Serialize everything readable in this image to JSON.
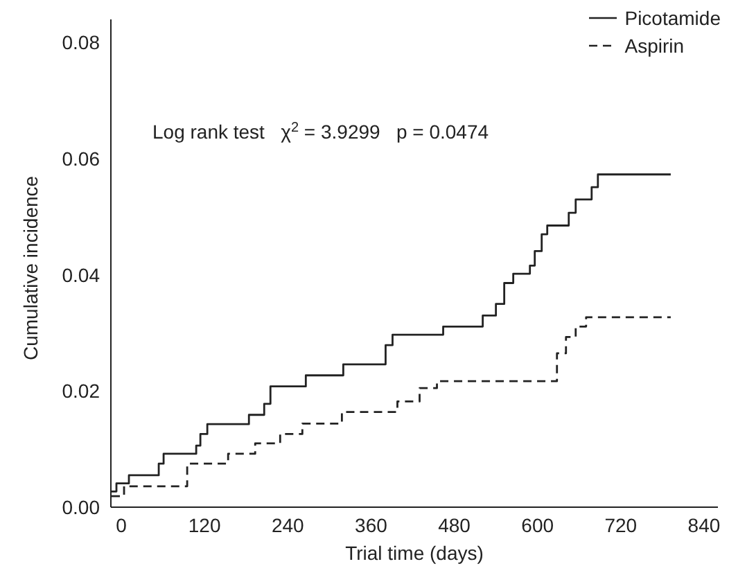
{
  "chart_data": {
    "type": "step",
    "xlabel": "Trial time (days)",
    "ylabel": "Cumulative incidence",
    "xlim": [
      -15,
      860
    ],
    "xticks": [
      0,
      120,
      240,
      360,
      480,
      600,
      720,
      840
    ],
    "ylim": [
      0,
      0.084
    ],
    "yticks": [
      {
        "value": 0,
        "label": "0.00"
      },
      {
        "value": 0.02,
        "label": "0.02"
      },
      {
        "value": 0.04,
        "label": "0.04"
      },
      {
        "value": 0.06,
        "label": "0.06"
      },
      {
        "value": 0.08,
        "label": "0.08"
      }
    ],
    "legend": "top right",
    "marker": "none",
    "annotations": [
      {
        "text": "Log rank test   χ$^{2}$ = 3.9299   p = 0.0474"
      }
    ],
    "series": [
      {
        "name": "Picotamide",
        "color": "#222222",
        "line_style": "solid",
        "x": [
          -14,
          -7,
          11,
          54,
          61,
          108,
          114,
          124,
          184,
          206,
          215,
          266,
          320,
          381,
          391,
          464,
          521,
          540,
          552,
          565,
          589,
          596,
          606,
          614,
          645,
          655,
          678,
          687,
          792
        ],
        "values": [
          0.0027,
          0.0041,
          0.0055,
          0.0075,
          0.0092,
          0.0106,
          0.0126,
          0.0143,
          0.0159,
          0.0178,
          0.0208,
          0.0227,
          0.0246,
          0.0279,
          0.0297,
          0.0311,
          0.033,
          0.035,
          0.0386,
          0.0402,
          0.0416,
          0.0441,
          0.047,
          0.0485,
          0.0507,
          0.053,
          0.0551,
          0.0573,
          0.0573
        ]
      },
      {
        "name": "Aspirin",
        "color": "#222222",
        "line_style": "dashed",
        "x": [
          -14,
          4,
          95,
          154,
          193,
          229,
          261,
          318,
          398,
          430,
          455,
          628,
          641,
          655,
          670,
          792
        ],
        "values": [
          0.0019,
          0.0036,
          0.0075,
          0.0092,
          0.011,
          0.0126,
          0.0144,
          0.0164,
          0.0182,
          0.0205,
          0.0217,
          0.0265,
          0.0293,
          0.0311,
          0.0327,
          0.0327
        ]
      }
    ]
  }
}
